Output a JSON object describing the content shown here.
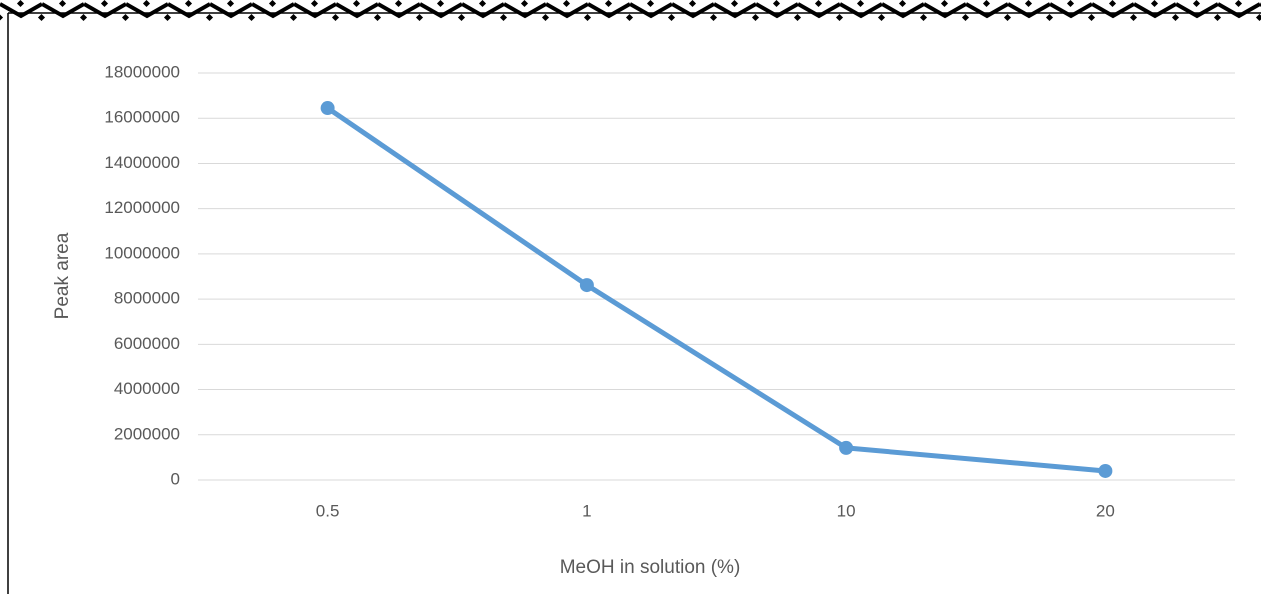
{
  "chart_data": {
    "type": "line",
    "x_label": "MeOH in solution (%)",
    "y_label": "Peak area",
    "categories": [
      "0.5",
      "1",
      "10",
      "20"
    ],
    "series": [
      {
        "name": "Peak area",
        "color": "#5b9bd5",
        "values": [
          16450000,
          8620000,
          1420000,
          400000
        ]
      }
    ],
    "ylim": [
      0,
      18000000
    ],
    "yticks": [
      0,
      2000000,
      4000000,
      6000000,
      8000000,
      10000000,
      12000000,
      14000000,
      16000000,
      18000000
    ],
    "grid": true
  }
}
